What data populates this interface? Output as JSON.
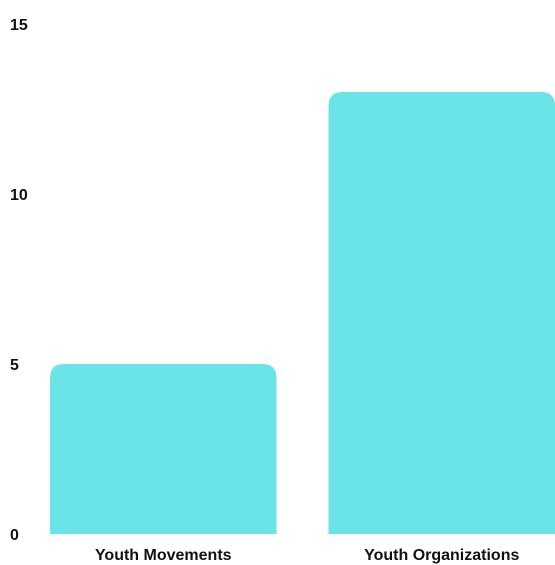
{
  "chart_data": {
    "type": "bar",
    "categories": [
      "Youth Movements",
      "Youth Organizations"
    ],
    "values": [
      5,
      13
    ],
    "ylim": [
      0,
      15
    ],
    "yticks": [
      "0",
      "5",
      "10",
      "15"
    ],
    "grid": false,
    "legend": "none",
    "bar_color": "#6ae4e8",
    "text_color": "#111111"
  }
}
